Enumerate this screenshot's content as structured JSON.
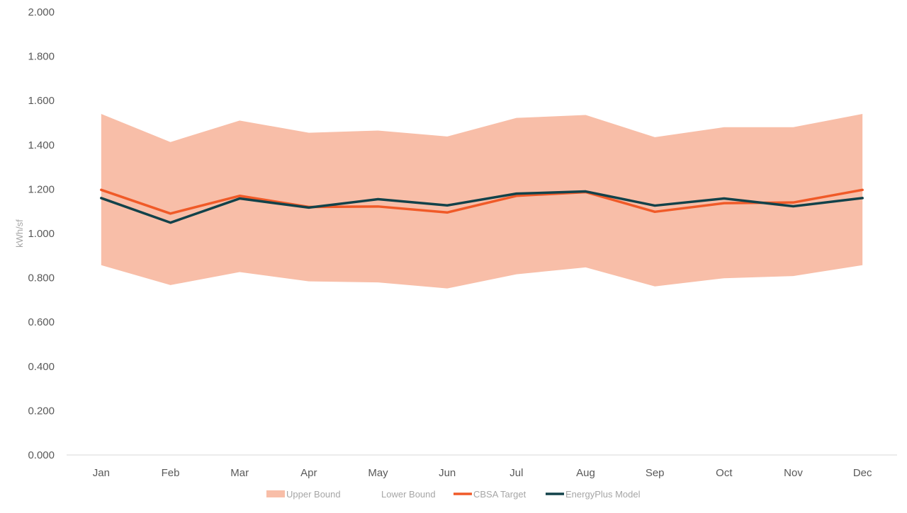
{
  "chart_data": {
    "type": "line",
    "ylabel": "kWh/sf",
    "ylim": [
      0,
      2.0
    ],
    "y_ticks": [
      "0.000",
      "0.200",
      "0.400",
      "0.600",
      "0.800",
      "1.000",
      "1.200",
      "1.400",
      "1.600",
      "1.800",
      "2.000"
    ],
    "y_tick_values": [
      0,
      0.2,
      0.4,
      0.6,
      0.8,
      1.0,
      1.2,
      1.4,
      1.6,
      1.8,
      2.0
    ],
    "categories": [
      "Jan",
      "Feb",
      "Mar",
      "Apr",
      "May",
      "Jun",
      "Jul",
      "Aug",
      "Sep",
      "Oct",
      "Nov",
      "Dec"
    ],
    "band": {
      "upper": {
        "name": "Upper Bound",
        "values": [
          1.54,
          1.413,
          1.51,
          1.455,
          1.465,
          1.438,
          1.522,
          1.535,
          1.435,
          1.48,
          1.48,
          1.54
        ]
      },
      "lower": {
        "name": "Lower Bound",
        "values": [
          0.857,
          0.767,
          0.826,
          0.784,
          0.779,
          0.752,
          0.816,
          0.847,
          0.761,
          0.798,
          0.808,
          0.857
        ]
      },
      "color": "#f8bea8"
    },
    "series": [
      {
        "name": "CBSA Target",
        "color": "#f05a28",
        "values": [
          1.197,
          1.09,
          1.17,
          1.12,
          1.122,
          1.095,
          1.17,
          1.187,
          1.098,
          1.137,
          1.14,
          1.197
        ]
      },
      {
        "name": "EnergyPlus Model",
        "color": "#12424a",
        "values": [
          1.16,
          1.049,
          1.158,
          1.117,
          1.155,
          1.127,
          1.18,
          1.19,
          1.126,
          1.158,
          1.123,
          1.16
        ]
      }
    ],
    "legend": [
      {
        "label": "Upper Bound",
        "kind": "box",
        "color": "#f8bea8"
      },
      {
        "label": "Lower Bound",
        "kind": "none",
        "color": "#ffffff"
      },
      {
        "label": "CBSA Target",
        "kind": "line",
        "color": "#f05a28"
      },
      {
        "label": "EnergyPlus Model",
        "kind": "line",
        "color": "#12424a"
      }
    ],
    "legend_position": "bottom",
    "grid": false,
    "axis_color": "#d9d9d9"
  }
}
